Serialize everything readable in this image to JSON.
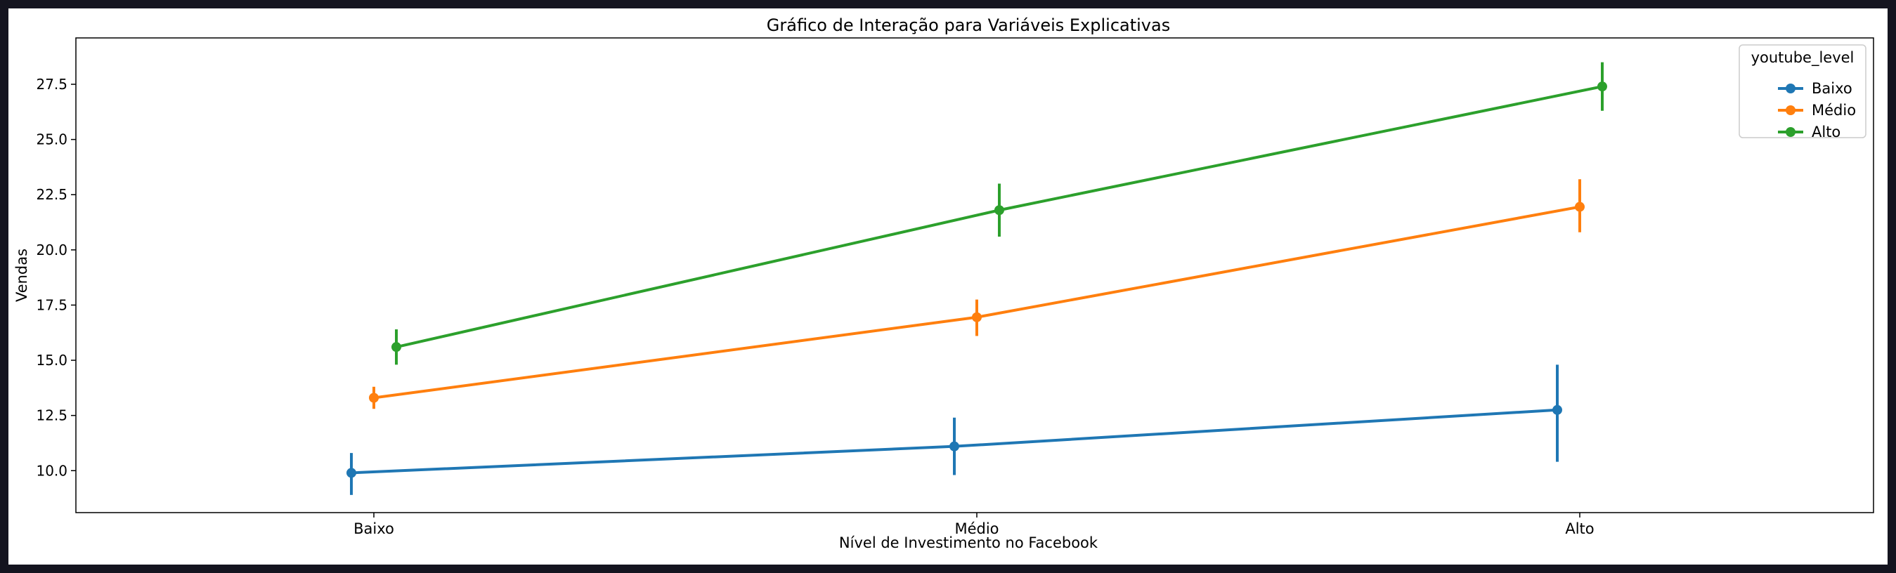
{
  "chart_data": {
    "type": "line",
    "title": "Gráfico de Interação para Variáveis Explicativas",
    "xlabel": "Nível de Investimento no Facebook",
    "ylabel": "Vendas",
    "categories": [
      "Baixo",
      "Médio",
      "Alto"
    ],
    "ylim": [
      8.1,
      29.6
    ],
    "yticks": [
      10.0,
      12.5,
      15.0,
      17.5,
      20.0,
      22.5,
      25.0,
      27.5
    ],
    "ytick_labels": [
      "10.0",
      "12.5",
      "15.0",
      "17.5",
      "20.0",
      "22.5",
      "25.0",
      "27.5"
    ],
    "grid": false,
    "legend": {
      "title": "youtube_level",
      "placement": "top-right"
    },
    "series": [
      {
        "name": "Baixo",
        "color": "#1f77b4",
        "values": [
          9.9,
          11.1,
          12.75
        ],
        "ci_low": [
          8.9,
          9.8,
          10.4
        ],
        "ci_high": [
          10.8,
          12.4,
          14.8
        ]
      },
      {
        "name": "Médio",
        "color": "#ff7f0e",
        "values": [
          13.3,
          16.95,
          21.95
        ],
        "ci_low": [
          12.8,
          16.1,
          20.8
        ],
        "ci_high": [
          13.8,
          17.75,
          23.2
        ]
      },
      {
        "name": "Alto",
        "color": "#2ca02c",
        "values": [
          15.6,
          21.8,
          27.4
        ],
        "ci_low": [
          14.8,
          20.6,
          26.3
        ],
        "ci_high": [
          16.4,
          23.0,
          28.5
        ]
      }
    ]
  }
}
